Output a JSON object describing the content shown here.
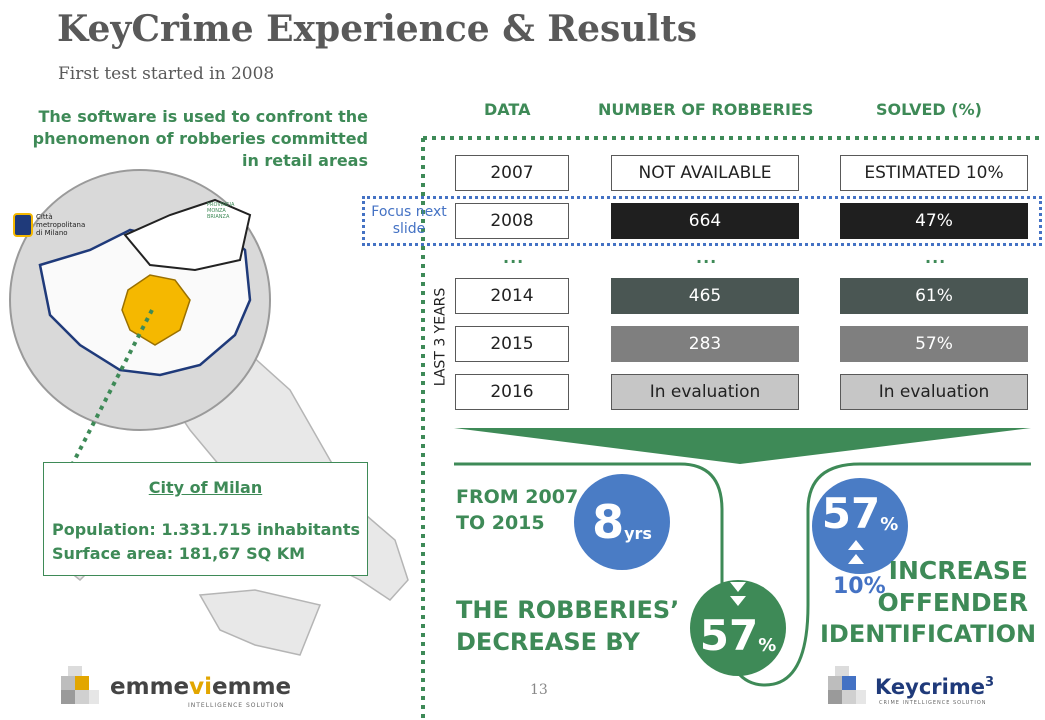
{
  "header": {
    "title": "KeyCrime Experience & Results",
    "subtitle": "First test started in 2008"
  },
  "description": "The software is used to confront the phenomenon of robberies committed in retail areas",
  "map": {
    "metro_label": "Città metropolitana di Milano",
    "province_label": "PROVINCIA MONZA BRIANZA"
  },
  "city_box": {
    "title": "City of Milan",
    "population": "Population: 1.331.715 inhabitants",
    "surface": "Surface area: 181,67 SQ KM"
  },
  "table": {
    "headers": [
      "DATA",
      "NUMBER OF ROBBERIES",
      "SOLVED (%)"
    ],
    "rows": [
      {
        "year": "2007",
        "robberies": "NOT AVAILABLE",
        "solved": "ESTIMATED 10%"
      },
      {
        "year": "2008",
        "robberies": "664",
        "solved": "47%"
      },
      {
        "year": "2014",
        "robberies": "465",
        "solved": "61%"
      },
      {
        "year": "2015",
        "robberies": "283",
        "solved": "57%"
      },
      {
        "year": "2016",
        "robberies": "In evaluation",
        "solved": "In evaluation"
      }
    ],
    "ellipsis": "...",
    "focus_label": "Focus next slide",
    "last3_label": "LAST 3 YEARS"
  },
  "results": {
    "period_line1": "FROM 2007",
    "period_line2": "TO 2015",
    "years_value": "8",
    "years_unit": "yrs",
    "decrease_line1": "THE ROBBERIES’",
    "decrease_line2": "DECREASE BY",
    "decrease_value": "57",
    "decrease_unit": "%",
    "increase_value": "57",
    "increase_unit": "%",
    "base_value": "10%",
    "increase_line1": "INCREASE",
    "increase_line2": "OFFENDER",
    "increase_line3": "IDENTIFICATION"
  },
  "footer": {
    "page_number": "13",
    "logo_left_pre": "emme",
    "logo_left_vi": "vi",
    "logo_left_post": "emme",
    "logo_left_sub": "INTELLIGENCE SOLUTION",
    "logo_right": "Keycrime",
    "logo_right_sup": "3",
    "logo_right_sub": "CRIME INTELLIGENCE SOLUTION"
  },
  "colors": {
    "green": "#3e8a57",
    "blue": "#4472c4",
    "dark": "#1f1f1f",
    "slate": "#4a5653",
    "gray": "#7f7f7f",
    "light_gray": "#c6c6c6",
    "highlight": "#f5b800"
  }
}
